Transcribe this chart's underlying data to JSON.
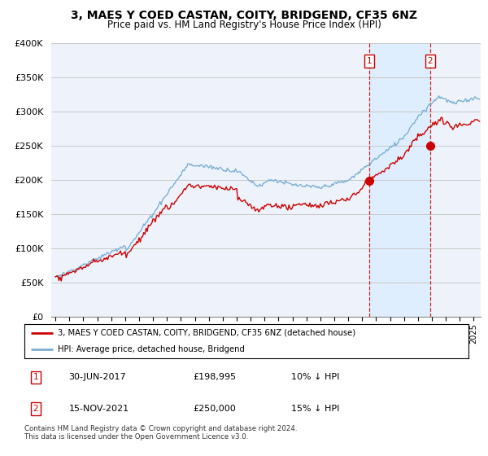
{
  "title": "3, MAES Y COED CASTAN, COITY, BRIDGEND, CF35 6NZ",
  "subtitle": "Price paid vs. HM Land Registry's House Price Index (HPI)",
  "legend_line1": "3, MAES Y COED CASTAN, COITY, BRIDGEND, CF35 6NZ (detached house)",
  "legend_line2": "HPI: Average price, detached house, Bridgend",
  "annotation1_label": "1",
  "annotation1_date": "30-JUN-2017",
  "annotation1_price": "£198,995",
  "annotation1_hpi": "10% ↓ HPI",
  "annotation2_label": "2",
  "annotation2_date": "15-NOV-2021",
  "annotation2_price": "£250,000",
  "annotation2_hpi": "15% ↓ HPI",
  "footer": "Contains HM Land Registry data © Crown copyright and database right 2024.\nThis data is licensed under the Open Government Licence v3.0.",
  "red_line_color": "#cc0000",
  "blue_line_color": "#7bafd4",
  "shade_color": "#ddeeff",
  "background_color": "#eef3fb",
  "annotation_box_color": "#cc0000",
  "grid_color": "#c8c8c8",
  "sale1_x": 2017.5,
  "sale1_y": 198995,
  "sale2_x": 2021.88,
  "sale2_y": 250000,
  "ylim": [
    0,
    400000
  ],
  "xlim_start": 1994.7,
  "xlim_end": 2025.5
}
